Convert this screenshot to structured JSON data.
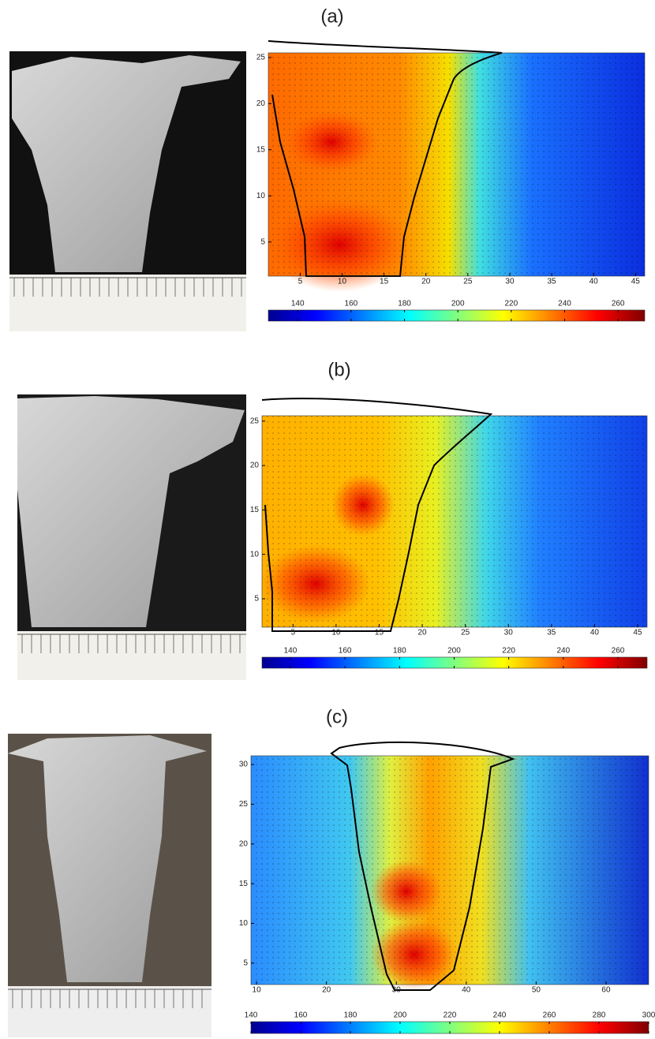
{
  "chart_data": [
    {
      "type": "contour",
      "label": "(a)",
      "xlim": [
        1.2,
        46.1
      ],
      "ylim": [
        1.3,
        25.5
      ],
      "xticks": [
        5,
        10,
        15,
        20,
        25,
        30,
        35,
        40,
        45
      ],
      "yticks": [
        5,
        10,
        15,
        20,
        25
      ],
      "colorbar": {
        "lim": [
          129,
          270
        ],
        "ticks": [
          140,
          160,
          180,
          200,
          220,
          240,
          260
        ]
      }
    },
    {
      "type": "contour",
      "label": "(b)",
      "xlim": [
        1.4,
        46.1
      ],
      "ylim": [
        1.8,
        25.6
      ],
      "xticks": [
        5,
        10,
        15,
        20,
        25,
        30,
        35,
        40,
        45
      ],
      "yticks": [
        5,
        10,
        15,
        20,
        25
      ],
      "colorbar": {
        "lim": [
          129.6,
          270.7
        ],
        "ticks": [
          140,
          160,
          180,
          200,
          220,
          240,
          260
        ]
      }
    },
    {
      "type": "contour",
      "label": "(c)",
      "xlim": [
        9.2,
        66.1
      ],
      "ylim": [
        2.3,
        31.1
      ],
      "xticks": [
        10,
        20,
        30,
        40,
        50,
        60
      ],
      "yticks": [
        5,
        10,
        15,
        20,
        25,
        30
      ],
      "colorbar": {
        "lim": [
          140,
          300
        ],
        "ticks": [
          140,
          160,
          180,
          200,
          220,
          240,
          260,
          280,
          300
        ]
      }
    }
  ]
}
